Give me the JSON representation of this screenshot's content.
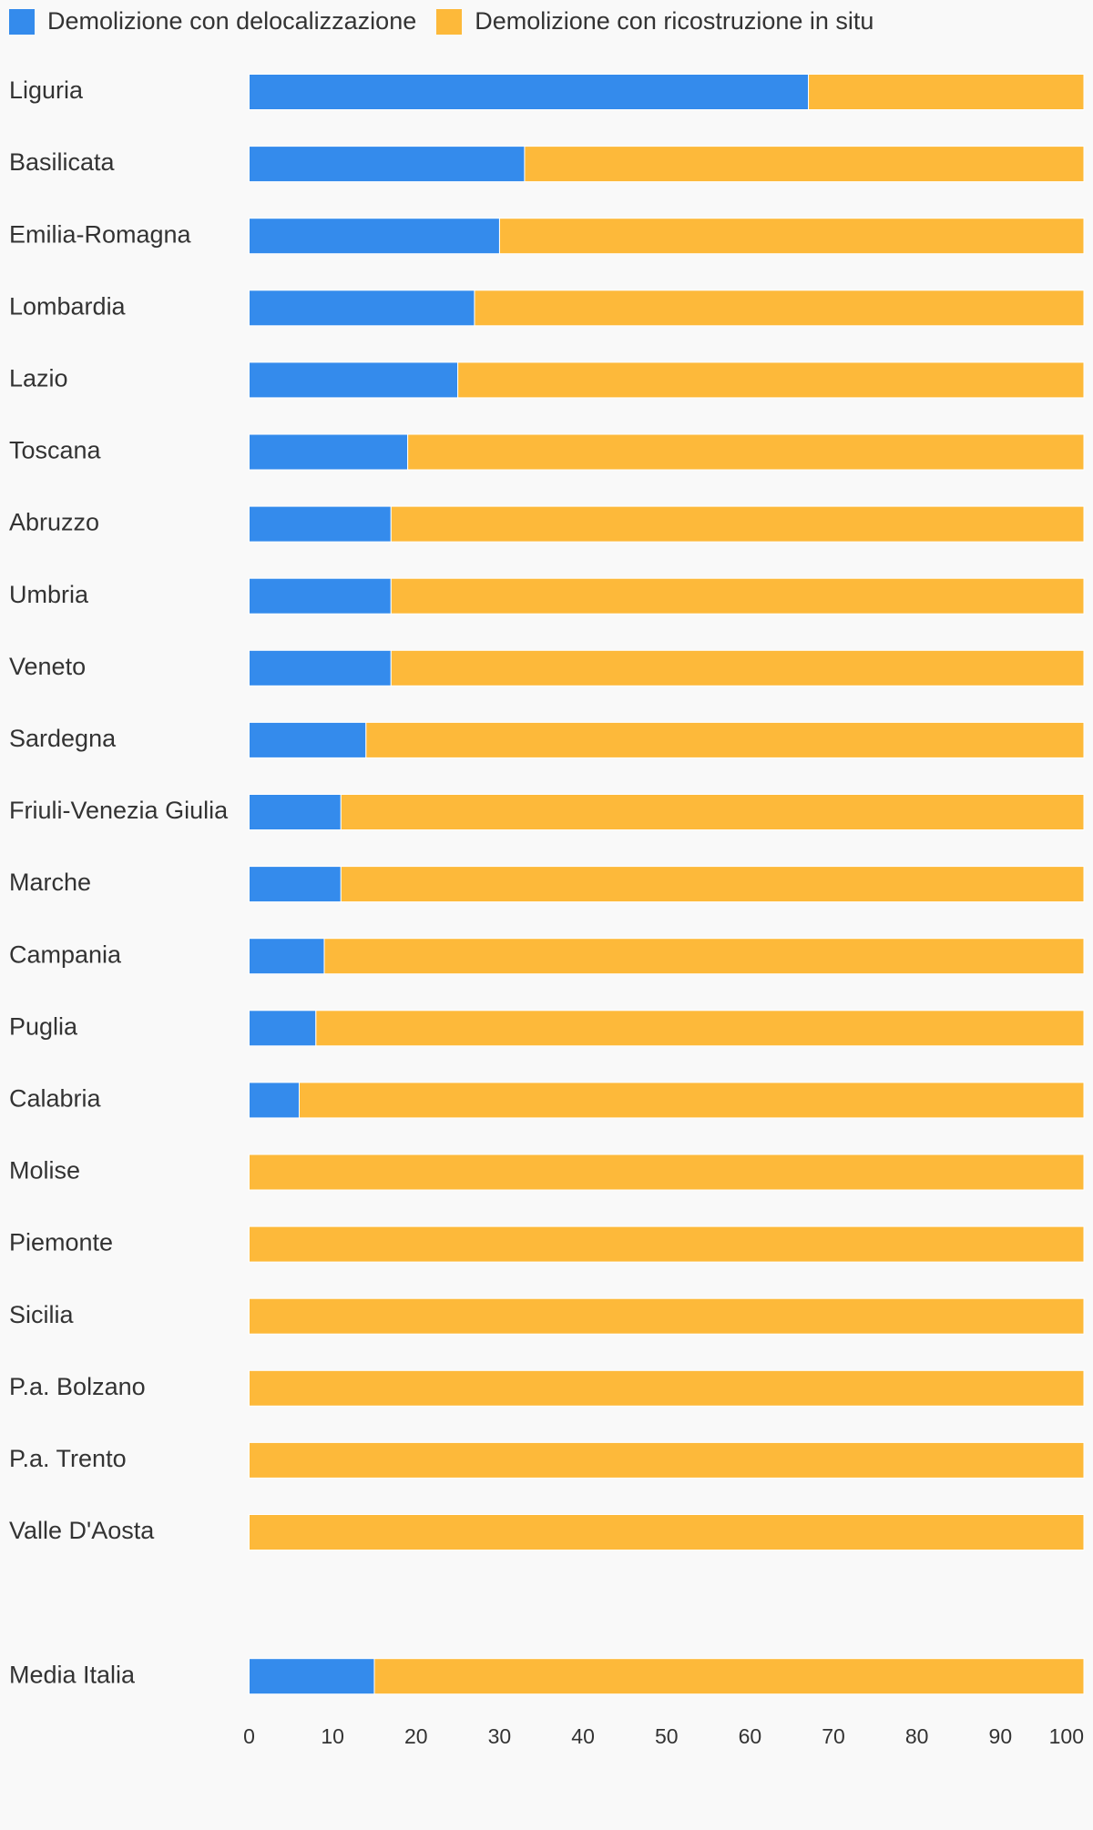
{
  "chart_data": {
    "type": "bar",
    "orientation": "horizontal",
    "stacked": true,
    "categories": [
      "Liguria",
      "Basilicata",
      "Emilia-Romagna",
      "Lombardia",
      "Lazio",
      "Toscana",
      "Abruzzo",
      "Umbria",
      "Veneto",
      "Sardegna",
      "Friuli-Venezia Giulia",
      "Marche",
      "Campania",
      "Puglia",
      "Calabria",
      "Molise",
      "Piemonte",
      "Sicilia",
      "P.a. Bolzano",
      "P.a. Trento",
      "Valle D'Aosta",
      "",
      "Media Italia"
    ],
    "series": [
      {
        "name": "Demolizione con delocalizzazione",
        "color": "#348bec",
        "values": [
          67,
          33,
          30,
          27,
          25,
          19,
          17,
          17,
          17,
          14,
          11,
          11,
          9,
          8,
          6,
          0,
          0,
          0,
          0,
          0,
          0,
          null,
          15
        ]
      },
      {
        "name": "Demolizione con ricostruzione in situ",
        "color": "#fdb93a",
        "values": [
          33,
          67,
          70,
          73,
          75,
          81,
          83,
          83,
          83,
          86,
          89,
          89,
          91,
          92,
          94,
          100,
          100,
          100,
          100,
          100,
          100,
          null,
          85
        ]
      }
    ],
    "xlim": [
      0,
      100
    ],
    "x_ticks": [
      "0",
      "10",
      "20",
      "30",
      "40",
      "50",
      "60",
      "70",
      "80",
      "90",
      "100"
    ],
    "legend_position": "top-left",
    "grid": false,
    "title": "",
    "xlabel": "",
    "ylabel": ""
  }
}
